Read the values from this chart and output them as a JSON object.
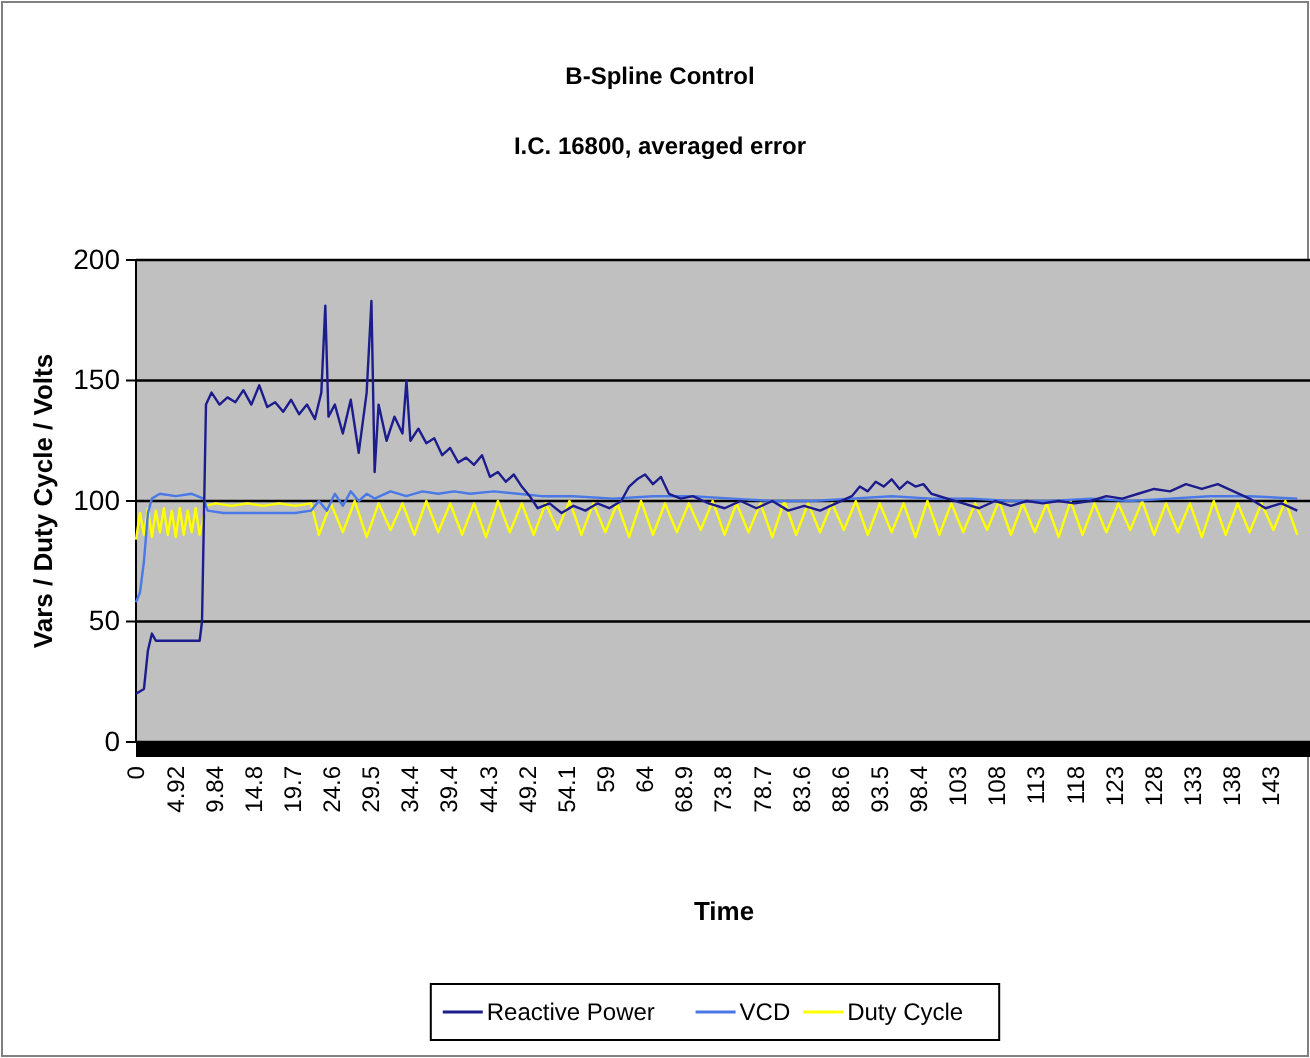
{
  "chart_data": {
    "type": "line",
    "title": "B-Spline Control",
    "subtitle": "I.C. 16800, averaged error",
    "xlabel": "Time",
    "ylabel": "Vars / Duty Cycle / Volts",
    "xlim": [
      0,
      147.6
    ],
    "ylim": [
      0,
      200
    ],
    "yticks": [
      0,
      50,
      100,
      150,
      200
    ],
    "xticks": [
      0,
      {
        "value": 4.92,
        "label": "4.92"
      },
      {
        "value": 9.84,
        "label": "9.84"
      },
      {
        "value": 14.76,
        "label": "14.8"
      },
      {
        "value": 19.68,
        "label": "19.7"
      },
      {
        "value": 24.6,
        "label": "24.6"
      },
      {
        "value": 29.52,
        "label": "29.5"
      },
      {
        "value": 34.44,
        "label": "34.4"
      },
      {
        "value": 39.36,
        "label": "39.4"
      },
      {
        "value": 44.28,
        "label": "44.3"
      },
      {
        "value": 49.2,
        "label": "49.2"
      },
      {
        "value": 54.12,
        "label": "54.1"
      },
      {
        "value": 59.04,
        "label": "59"
      },
      {
        "value": 63.96,
        "label": "64"
      },
      {
        "value": 68.88,
        "label": "68.9"
      },
      {
        "value": 73.8,
        "label": "73.8"
      },
      {
        "value": 78.72,
        "label": "78.7"
      },
      {
        "value": 83.64,
        "label": "83.6"
      },
      {
        "value": 88.56,
        "label": "88.6"
      },
      {
        "value": 93.48,
        "label": "93.5"
      },
      {
        "value": 98.4,
        "label": "98.4"
      },
      {
        "value": 103.32,
        "label": "103"
      },
      {
        "value": 108.24,
        "label": "108"
      },
      {
        "value": 113.16,
        "label": "113"
      },
      {
        "value": 118.08,
        "label": "118"
      },
      {
        "value": 123,
        "label": "123"
      },
      {
        "value": 127.92,
        "label": "128"
      },
      {
        "value": 132.84,
        "label": "133"
      },
      {
        "value": 137.76,
        "label": "138"
      },
      {
        "value": 142.68,
        "label": "143"
      }
    ],
    "grid": "y",
    "legend": "bottom",
    "marker": "none",
    "line_style": "solid",
    "series": [
      {
        "name": "Reactive Power",
        "color": "#1c1c8c",
        "x": [
          0,
          1,
          1.5,
          2,
          2.5,
          4,
          6,
          8,
          8.3,
          8.8,
          9.5,
          10.5,
          11.5,
          12.5,
          13.5,
          14.5,
          15.5,
          16.5,
          17.5,
          18.5,
          19.5,
          20.5,
          21.5,
          22.5,
          23.3,
          23.8,
          24.2,
          25,
          26,
          27,
          28,
          29,
          29.6,
          30,
          30.5,
          31.5,
          32.5,
          33.5,
          34,
          34.5,
          35.5,
          36.5,
          37.5,
          38.5,
          39.5,
          40.5,
          41.5,
          42.5,
          43.5,
          44.5,
          45.5,
          46.5,
          47.5,
          48.5,
          49.5,
          50.5,
          52,
          53.5,
          55,
          56.5,
          58,
          59.5,
          61,
          62,
          63,
          64,
          65,
          66,
          67,
          68.5,
          70,
          72,
          74,
          76,
          78,
          80,
          82,
          84,
          86,
          88,
          90,
          91,
          92,
          93,
          94,
          95,
          96,
          97,
          98,
          99,
          100,
          102,
          104,
          106,
          108,
          110,
          112,
          114,
          116,
          118,
          120,
          122,
          124,
          126,
          128,
          130,
          132,
          134,
          136,
          138,
          140,
          142,
          144,
          146
        ],
        "values": [
          20,
          22,
          38,
          45,
          42,
          42,
          42,
          42,
          50,
          140,
          145,
          140,
          143,
          141,
          146,
          140,
          148,
          139,
          141,
          137,
          142,
          136,
          140,
          134,
          145,
          181,
          135,
          140,
          128,
          142,
          120,
          145,
          183,
          112,
          140,
          125,
          135,
          128,
          150,
          125,
          130,
          124,
          126,
          119,
          122,
          116,
          118,
          115,
          119,
          110,
          112,
          108,
          111,
          106,
          102,
          97,
          99,
          95,
          98,
          96,
          99,
          97,
          100,
          106,
          109,
          111,
          107,
          110,
          103,
          101,
          102,
          99,
          97,
          100,
          97,
          100,
          96,
          98,
          96,
          99,
          102,
          106,
          104,
          108,
          106,
          109,
          105,
          108,
          106,
          107,
          103,
          101,
          99,
          97,
          100,
          98,
          100,
          99,
          100,
          99,
          100,
          102,
          101,
          103,
          105,
          104,
          107,
          105,
          107,
          104,
          101,
          97,
          99,
          96
        ]
      },
      {
        "name": "VCD",
        "color": "#4a78e6",
        "x": [
          0,
          0.5,
          1,
          1.5,
          2,
          3,
          5,
          7,
          8.5,
          9,
          11,
          14,
          17,
          20,
          22,
          23,
          24,
          25,
          26,
          27,
          28,
          29,
          30,
          32,
          34,
          36,
          38,
          40,
          42,
          45,
          48,
          51,
          55,
          60,
          65,
          70,
          75,
          80,
          85,
          90,
          95,
          100,
          105,
          110,
          115,
          120,
          125,
          130,
          135,
          140,
          146
        ],
        "values": [
          58,
          62,
          75,
          95,
          101,
          103,
          102,
          103,
          101,
          96,
          95,
          95,
          95,
          95,
          96,
          100,
          96,
          103,
          98,
          104,
          100,
          103,
          101,
          104,
          102,
          104,
          103,
          104,
          103,
          104,
          103,
          102,
          102,
          101,
          102,
          102,
          101,
          100,
          100,
          101,
          102,
          101,
          101,
          100,
          100,
          101,
          100,
          101,
          102,
          102,
          101
        ]
      },
      {
        "name": "Duty Cycle",
        "color": "#ffff00",
        "x": [
          0,
          0.5,
          1,
          1.5,
          2,
          2.5,
          3,
          3.5,
          4,
          4.5,
          5,
          5.5,
          6,
          6.5,
          7,
          7.5,
          8,
          8.8,
          10,
          12,
          14,
          16,
          18,
          20,
          22,
          23,
          24.5,
          26,
          27.5,
          29,
          30.5,
          32,
          33.5,
          35,
          36.5,
          38,
          39.5,
          41,
          42.5,
          44,
          45.5,
          47,
          48.5,
          50,
          51.5,
          53,
          54.5,
          56,
          57.5,
          59,
          60.5,
          62,
          63.5,
          65,
          66.5,
          68,
          69.5,
          71,
          72.5,
          74,
          75.5,
          77,
          78.5,
          80,
          81.5,
          83,
          84.5,
          86,
          87.5,
          89,
          90.5,
          92,
          93.5,
          95,
          96.5,
          98,
          99.5,
          101,
          102.5,
          104,
          105.5,
          107,
          108.5,
          110,
          111.5,
          113,
          114.5,
          116,
          117.5,
          119,
          120.5,
          122,
          123.5,
          125,
          126.5,
          128,
          129.5,
          131,
          132.5,
          134,
          135.5,
          137,
          138.5,
          140,
          141.5,
          143,
          144.5,
          146
        ],
        "values": [
          84,
          95,
          86,
          97,
          85,
          96,
          87,
          97,
          86,
          96,
          85,
          97,
          86,
          96,
          87,
          97,
          86,
          98,
          99,
          98,
          99,
          98,
          99,
          98,
          99,
          86,
          99,
          87,
          100,
          85,
          99,
          88,
          99,
          86,
          100,
          87,
          99,
          86,
          99,
          85,
          100,
          87,
          99,
          86,
          99,
          88,
          100,
          86,
          99,
          87,
          99,
          85,
          100,
          86,
          99,
          87,
          99,
          88,
          100,
          86,
          99,
          87,
          99,
          85,
          100,
          86,
          99,
          87,
          99,
          88,
          100,
          86,
          99,
          87,
          99,
          85,
          100,
          86,
          99,
          87,
          99,
          88,
          100,
          86,
          99,
          87,
          99,
          85,
          100,
          86,
          99,
          87,
          99,
          88,
          100,
          86,
          99,
          87,
          99,
          85,
          100,
          86,
          99,
          87,
          99,
          88,
          100,
          86
        ]
      }
    ]
  }
}
